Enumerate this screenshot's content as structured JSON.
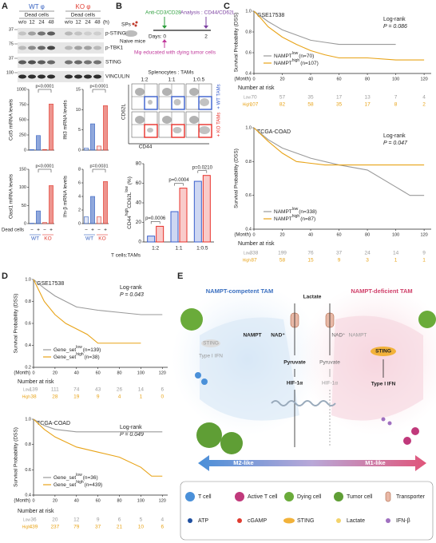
{
  "panel_labels": [
    "A",
    "B",
    "C",
    "D",
    "E"
  ],
  "A": {
    "groups": [
      {
        "name": "WT φ",
        "color": "#3560c0"
      },
      {
        "name": "KO φ",
        "color": "#e03c31"
      }
    ],
    "treatment": "Dead cells",
    "timepoints": [
      "w/o",
      "12",
      "24",
      "48"
    ],
    "time_unit": "(h)",
    "blots": [
      {
        "label": "p-STING",
        "mw": "37"
      },
      {
        "label": "p-TBK1",
        "mw": "75"
      },
      {
        "label": "STING",
        "mw": "37"
      },
      {
        "label": "VINCULIN",
        "mw": "100"
      }
    ],
    "charts": [
      {
        "type": "bar",
        "ylabel": "Ccl5 mRNA levels",
        "values": [
          8,
          240,
          10,
          760
        ],
        "ylim": [
          0,
          1000
        ],
        "yticks": [
          0,
          250,
          500,
          750,
          1000
        ],
        "pvalue": "p<0.0001"
      },
      {
        "type": "bar",
        "ylabel": "Ifit3 mRNA levels",
        "values": [
          0.5,
          6.5,
          1,
          11
        ],
        "ylim": [
          0,
          15
        ],
        "yticks": [
          0,
          5,
          10,
          15
        ],
        "pvalue": "p<0.0001"
      },
      {
        "type": "bar",
        "ylabel": "Oasl1 mRNA levels",
        "values": [
          1,
          35,
          3,
          105
        ],
        "ylim": [
          0,
          150
        ],
        "yticks": [
          0,
          50,
          100,
          150
        ],
        "pvalue": "p<0.0001"
      },
      {
        "type": "bar",
        "ylabel": "Ifn-β mRNA levels",
        "values": [
          1,
          4,
          1,
          6.2
        ],
        "ylim": [
          0,
          8
        ],
        "yticks": [
          0,
          2,
          4,
          6,
          8
        ],
        "pvalue": "p=0.0031"
      }
    ],
    "signs": [
      "−",
      "+",
      "−",
      "+"
    ],
    "genotypes": [
      "WT",
      "KO"
    ]
  },
  "B": {
    "protocol": {
      "stimulus": "Anti-CD3/CD28",
      "analysis": "Analysis : CD44/CD62L",
      "cells": "SPs",
      "source": "Naive mice",
      "days_label": "Days: 0",
      "day_end": "2",
      "macrophage": "Mφ educated with dying tumor cells"
    },
    "flow": {
      "title": "Splenocytes : TAMs",
      "ratios": [
        "1:2",
        "1:1",
        "1:0.5"
      ],
      "y_axis": "CD62L",
      "x_axis": "CD44"
    },
    "chart": {
      "type": "bar",
      "ylabel": [
        {
          "text": "CD44"
        },
        {
          "text": "high",
          "sup": true
        },
        {
          "text": "CD62L"
        },
        {
          "text": "low",
          "sup": true
        },
        {
          "text": " (%)"
        }
      ],
      "categories": [
        "1:2",
        "1:1",
        "1:0.5"
      ],
      "xlabel": "T cells:TAMs",
      "series": [
        {
          "name": "+ WT TAMs",
          "color": "#3a5fcd",
          "values": [
            6,
            31,
            62
          ]
        },
        {
          "name": "+ KO TAMs",
          "color": "#e8302a",
          "values": [
            16,
            55,
            68
          ]
        }
      ],
      "pvalues": [
        "p=0.0006",
        "p=0.0004",
        "p=0.0210"
      ],
      "ylim": [
        0,
        80
      ],
      "yticks": [
        0,
        20,
        40,
        60,
        80
      ]
    }
  },
  "C": {
    "charts": [
      {
        "type": "line",
        "title": "GSE17538",
        "test": "Log-rank",
        "pvalue": "P = 0.086",
        "ylabel": "Survival Probability (DSS)",
        "xlabel": "(Month)",
        "risk_title": "Number at risk",
        "xlim": [
          0,
          125
        ],
        "xticks": [
          0,
          20,
          40,
          60,
          80,
          100,
          120
        ],
        "ylim": [
          0.4,
          1
        ],
        "yticks": [
          {
            "value": 0.4,
            "label": "0.4"
          },
          {
            "value": 0.6,
            "label": "0.6"
          },
          {
            "value": 0.8,
            "label": "0.8"
          },
          {
            "value": 1,
            "label": "1.0"
          }
        ],
        "series": [
          {
            "name": "NAMPT",
            "sup": "low",
            "n": "(n=70)",
            "color": "#9a9a9a",
            "x": [
              0,
              5,
              10,
              15,
              20,
              30,
              40,
              50,
              60,
              80,
              100
            ],
            "y": [
              1,
              0.95,
              0.9,
              0.86,
              0.82,
              0.77,
              0.72,
              0.7,
              0.68,
              0.68,
              0.68
            ],
            "risk_label": "Low",
            "risk": [
              70,
              57,
              35,
              17,
              13,
              7,
              4
            ]
          },
          {
            "name": "NAMPT",
            "sup": "high",
            "n": "(n=107)",
            "color": "#e8a317",
            "x": [
              0,
              5,
              10,
              20,
              30,
              40,
              50,
              60,
              80,
              100,
              120
            ],
            "y": [
              1,
              0.93,
              0.85,
              0.75,
              0.68,
              0.62,
              0.58,
              0.55,
              0.55,
              0.53,
              0.53
            ],
            "risk_label": "High",
            "risk": [
              107,
              82,
              58,
              35,
              17,
              8,
              2
            ]
          }
        ]
      },
      {
        "type": "line",
        "title": "TCGA-COAD",
        "test": "Log-rank",
        "pvalue": "P = 0.047",
        "ylabel": "Survival Probability (DSS)",
        "xlabel": "(Month)",
        "risk_title": "Number at risk",
        "xlim": [
          0,
          125
        ],
        "xticks": [
          0,
          20,
          40,
          60,
          80,
          100,
          120
        ],
        "ylim": [
          0.4,
          1
        ],
        "yticks": [
          {
            "value": 0.4,
            "label": "0.4"
          },
          {
            "value": 0.6,
            "label": "0.6"
          },
          {
            "value": 0.8,
            "label": "0.8"
          },
          {
            "value": 1,
            "label": "1.0"
          }
        ],
        "series": [
          {
            "name": "NAMPT",
            "sup": "low",
            "n": "(n=338)",
            "color": "#9a9a9a",
            "x": [
              0,
              10,
              20,
              30,
              40,
              60,
              80,
              100,
              110,
              120
            ],
            "y": [
              1,
              0.93,
              0.88,
              0.85,
              0.82,
              0.78,
              0.75,
              0.65,
              0.6,
              0.6
            ],
            "risk_label": "Low",
            "risk": [
              338,
              199,
              76,
              37,
              24,
              14,
              9
            ]
          },
          {
            "name": "NAMPT",
            "sup": "high",
            "n": "(n=87)",
            "color": "#e8a317",
            "x": [
              0,
              10,
              20,
              30,
              50,
              80,
              120
            ],
            "y": [
              1,
              0.92,
              0.85,
              0.8,
              0.78,
              0.78,
              0.78
            ],
            "risk_label": "High",
            "risk": [
              87,
              58,
              15,
              9,
              3,
              1,
              1
            ]
          }
        ]
      }
    ]
  },
  "D": {
    "charts": [
      {
        "type": "line",
        "title": "GSE17538",
        "test": "Log-rank",
        "pvalue": "P = 0.043",
        "ylabel": "Survival Probability (DSS)",
        "xlabel": "(Month)",
        "risk_title": "Number at risk",
        "xlim": [
          0,
          125
        ],
        "xticks": [
          0,
          20,
          40,
          60,
          80,
          100,
          120
        ],
        "ylim": [
          0.2,
          1
        ],
        "yticks": [
          {
            "value": 0.2,
            "label": "0.2"
          },
          {
            "value": 0.4,
            "label": "0.4"
          },
          {
            "value": 0.6,
            "label": "0.6"
          },
          {
            "value": 0.8,
            "label": "0.8"
          },
          {
            "value": 1,
            "label": "1.0"
          }
        ],
        "series": [
          {
            "name": "Gene_set",
            "sup": "low",
            "n": "(n=139)",
            "color": "#9a9a9a",
            "x": [
              0,
              10,
              20,
              30,
              40,
              60,
              80,
              100,
              120
            ],
            "y": [
              1,
              0.92,
              0.85,
              0.8,
              0.75,
              0.72,
              0.7,
              0.68,
              0.68
            ],
            "risk_label": "Low",
            "risk": [
              139,
              111,
              74,
              43,
              26,
              14,
              6
            ]
          },
          {
            "name": "Gene_set",
            "sup": "high",
            "n": "(n=38)",
            "color": "#e8a317",
            "x": [
              0,
              5,
              10,
              20,
              30,
              40,
              50,
              60,
              80,
              100
            ],
            "y": [
              1,
              0.9,
              0.8,
              0.68,
              0.6,
              0.55,
              0.5,
              0.42,
              0.42,
              0.42
            ],
            "risk_label": "High",
            "risk": [
              38,
              28,
              19,
              9,
              4,
              1,
              0
            ]
          }
        ]
      },
      {
        "type": "line",
        "title": "TCGA-COAD",
        "test": "Log-rank",
        "pvalue": "P = 0.049",
        "ylabel": "Survival Probability (DSS)",
        "xlabel": "(Month)",
        "risk_title": "Number at risk",
        "xlim": [
          0,
          125
        ],
        "xticks": [
          0,
          20,
          40,
          60,
          80,
          100,
          120
        ],
        "ylim": [
          0.4,
          1
        ],
        "yticks": [
          {
            "value": 0.4,
            "label": "0.4"
          },
          {
            "value": 0.6,
            "label": "0.6"
          },
          {
            "value": 0.8,
            "label": "0.8"
          },
          {
            "value": 1,
            "label": "1.0"
          }
        ],
        "series": [
          {
            "name": "Gene_set",
            "sup": "low",
            "n": "(n=36)",
            "color": "#9a9a9a",
            "x": [
              0,
              10,
              20,
              40,
              60,
              80,
              120
            ],
            "y": [
              1,
              0.95,
              0.92,
              0.9,
              0.9,
              0.9,
              0.9
            ],
            "risk_label": "Low",
            "risk": [
              36,
              20,
              12,
              9,
              6,
              5,
              4
            ]
          },
          {
            "name": "Gene_set",
            "sup": "high",
            "n": "(n=439)",
            "color": "#e8a317",
            "x": [
              0,
              10,
              20,
              30,
              40,
              60,
              80,
              100,
              110,
              120
            ],
            "y": [
              1,
              0.92,
              0.86,
              0.82,
              0.78,
              0.74,
              0.7,
              0.62,
              0.55,
              0.55
            ],
            "risk_label": "High",
            "risk": [
              439,
              237,
              79,
              37,
              21,
              10,
              6
            ]
          }
        ]
      }
    ]
  },
  "E": {
    "left_title": "NAMPT-competent TAM",
    "right_title": "NAMPT-deficient TAM",
    "lactate": "Lactate",
    "left": {
      "nampt": "NAMPT",
      "nad": "NAD⁺",
      "pyruvate": "Pyruvate",
      "hif": "HIF-1α",
      "sting": "STING",
      "ifn": "Type I IFN"
    },
    "right": {
      "nampt": "NAMPT",
      "nad": "NAD⁺",
      "pyruvate": "Pyruvate",
      "hif": "HIF-1α",
      "sting": "STING",
      "ifn": "Type I IFN"
    },
    "m2": "M2-like",
    "m1": "M1-like",
    "legend": [
      "T cell",
      "Active T cell",
      "Dying cell",
      "Tumor cell",
      "Transporter",
      "ATP",
      "cGAMP",
      "STING",
      "Lactate",
      "IFN-β"
    ]
  }
}
